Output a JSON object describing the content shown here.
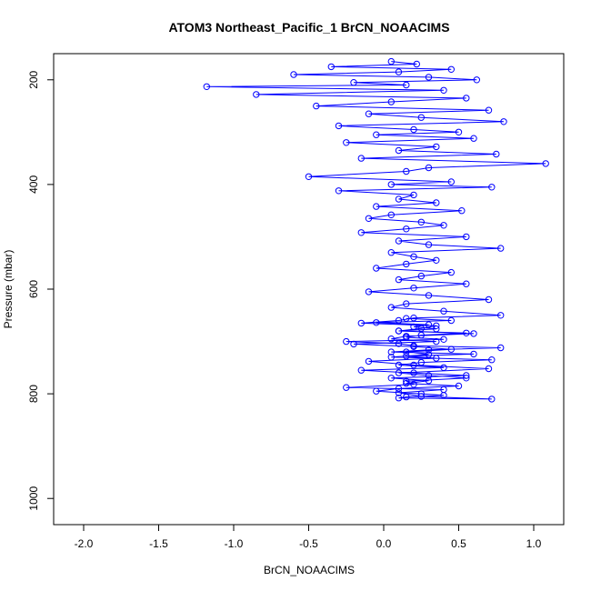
{
  "chart_data": {
    "type": "line",
    "title": "ATOM3 Northeast_Pacific_1 BrCN_NOAACIMS",
    "xlabel": "BrCN_NOAACIMS",
    "ylabel": "Pressure (mbar)",
    "xlim": [
      -2.2,
      1.2
    ],
    "ylim": [
      1050,
      150
    ],
    "y_inverted": true,
    "x_ticks": [
      -2.0,
      -1.5,
      -1.0,
      -0.5,
      0.0,
      0.5,
      1.0
    ],
    "x_tick_labels": [
      "-2.0",
      "-1.5",
      "-1.0",
      "-0.5",
      "0.0",
      "0.5",
      "1.0"
    ],
    "y_ticks": [
      200,
      400,
      600,
      800,
      1000
    ],
    "y_tick_labels": [
      "200",
      "400",
      "600",
      "800",
      "1000"
    ],
    "grid": false,
    "legend": "none",
    "marker": "open-circle",
    "series": [
      {
        "color": "#0000ff",
        "x": [
          0.05,
          0.22,
          -0.35,
          0.45,
          0.1,
          -0.6,
          0.3,
          0.62,
          -0.2,
          0.15,
          -1.18,
          0.4,
          -0.85,
          0.55,
          0.05,
          -0.45,
          0.7,
          -0.1,
          0.25,
          0.8,
          -0.3,
          0.2,
          0.5,
          -0.05,
          0.6,
          -0.25,
          0.35,
          0.1,
          0.75,
          -0.15,
          1.08,
          0.3,
          0.15,
          -0.5,
          0.45,
          0.05,
          0.72,
          -0.3,
          0.2,
          0.1,
          0.35,
          -0.05,
          0.52,
          0.05,
          -0.1,
          0.25,
          0.4,
          0.15,
          -0.15,
          0.55,
          0.1,
          0.3,
          0.78,
          0.05,
          0.2,
          0.35,
          0.15,
          -0.05,
          0.45,
          0.25,
          0.1,
          0.55,
          0.2,
          -0.1,
          0.3,
          0.7,
          0.15,
          0.05,
          0.4,
          0.78,
          0.2,
          0.1,
          -0.15,
          0.35,
          0.25,
          0.1,
          0.6,
          0.15,
          0.05,
          0.35,
          -0.2,
          0.2,
          0.45,
          0.15,
          0.3,
          0.05,
          0.72,
          0.25,
          0.1,
          0.4,
          -0.15,
          0.2,
          0.55,
          0.05,
          0.3,
          0.15,
          0.5,
          0.1,
          -0.05,
          0.25,
          0.4,
          0.15,
          0.1,
          0.72,
          0.25,
          0.1,
          0.4,
          -0.25,
          0.2,
          0.15,
          0.55,
          0.3,
          0.1,
          0.7,
          0.2,
          -0.1,
          0.35,
          0.15,
          0.6,
          0.05,
          0.3,
          0.78,
          0.2,
          0.1,
          -0.25,
          0.4,
          0.15,
          0.25,
          0.55,
          0.1,
          0.35,
          0.2,
          0.3,
          -0.05,
          0.45,
          0.15
        ],
        "y": [
          165,
          170,
          175,
          180,
          185,
          190,
          195,
          200,
          205,
          210,
          213,
          220,
          228,
          235,
          242,
          250,
          258,
          265,
          272,
          280,
          288,
          295,
          300,
          305,
          312,
          320,
          328,
          335,
          342,
          350,
          360,
          368,
          375,
          385,
          395,
          400,
          405,
          412,
          420,
          428,
          435,
          442,
          450,
          458,
          465,
          472,
          478,
          485,
          492,
          500,
          508,
          515,
          522,
          530,
          538,
          545,
          552,
          560,
          568,
          575,
          582,
          590,
          598,
          605,
          612,
          620,
          628,
          635,
          642,
          650,
          655,
          660,
          665,
          670,
          675,
          680,
          685,
          690,
          695,
          700,
          705,
          710,
          715,
          720,
          725,
          730,
          735,
          740,
          745,
          750,
          755,
          760,
          765,
          770,
          775,
          780,
          785,
          790,
          795,
          800,
          803,
          806,
          808,
          810,
          805,
          798,
          792,
          788,
          782,
          776,
          770,
          765,
          760,
          752,
          745,
          738,
          732,
          728,
          724,
          720,
          716,
          712,
          708,
          704,
          700,
          696,
          692,
          688,
          684,
          680,
          676,
          672,
          668,
          664,
          660,
          656
        ]
      }
    ]
  }
}
